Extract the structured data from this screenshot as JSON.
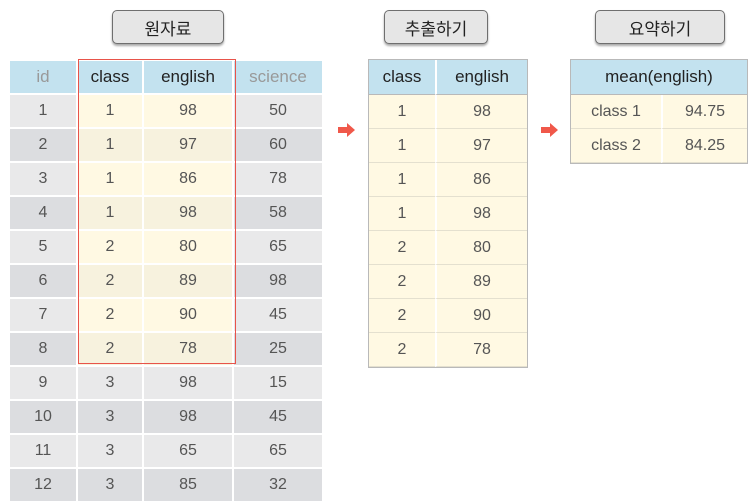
{
  "labels": {
    "source": "원자료",
    "extract": "추출하기",
    "summarize": "요약하기"
  },
  "source_table": {
    "headers": [
      "id",
      "class",
      "english",
      "science"
    ],
    "rows": [
      [
        "1",
        "1",
        "98",
        "50"
      ],
      [
        "2",
        "1",
        "97",
        "60"
      ],
      [
        "3",
        "1",
        "86",
        "78"
      ],
      [
        "4",
        "1",
        "98",
        "58"
      ],
      [
        "5",
        "2",
        "80",
        "65"
      ],
      [
        "6",
        "2",
        "89",
        "98"
      ],
      [
        "7",
        "2",
        "90",
        "45"
      ],
      [
        "8",
        "2",
        "78",
        "25"
      ],
      [
        "9",
        "3",
        "98",
        "15"
      ],
      [
        "10",
        "3",
        "98",
        "45"
      ],
      [
        "11",
        "3",
        "65",
        "65"
      ],
      [
        "12",
        "3",
        "85",
        "32"
      ]
    ]
  },
  "extracted_table": {
    "headers": [
      "class",
      "english"
    ],
    "rows": [
      [
        "1",
        "98"
      ],
      [
        "1",
        "97"
      ],
      [
        "1",
        "86"
      ],
      [
        "1",
        "98"
      ],
      [
        "2",
        "80"
      ],
      [
        "2",
        "89"
      ],
      [
        "2",
        "90"
      ],
      [
        "2",
        "78"
      ]
    ]
  },
  "summary_table": {
    "header": "mean(english)",
    "rows": [
      [
        "class 1",
        "94.75"
      ],
      [
        "class 2",
        "84.25"
      ]
    ]
  },
  "colors": {
    "header_blue": "#c3e2ef",
    "highlight_yellow": "#fff9e3",
    "arrow_red": "#f0584a",
    "box_red": "#e8534a",
    "grey_cell": "#e9e9ea"
  }
}
